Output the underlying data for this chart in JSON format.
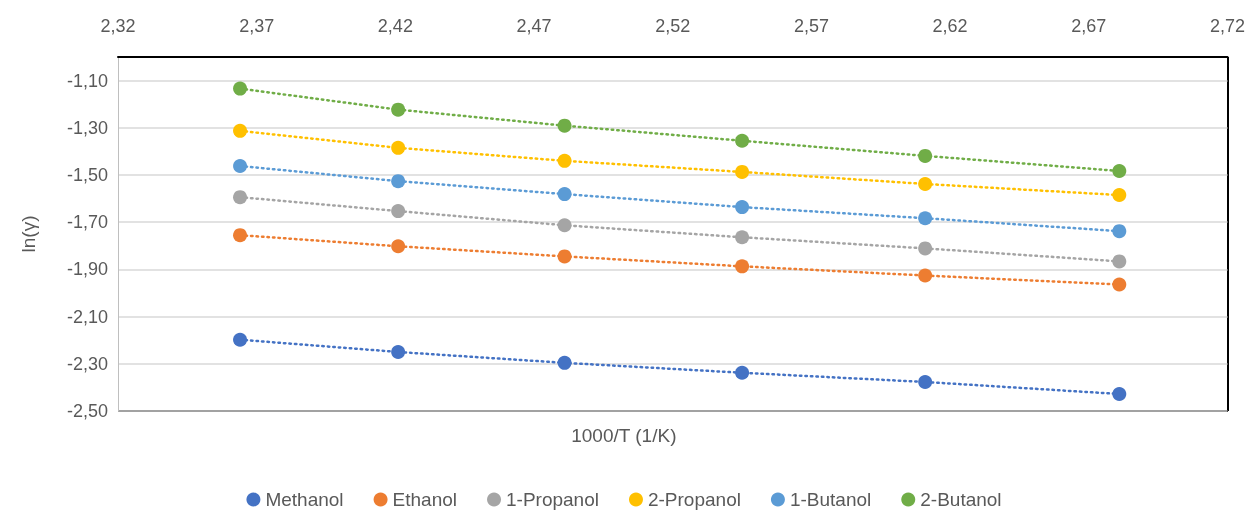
{
  "chart_data": {
    "type": "line",
    "xlabel": "1000/T (1/K)",
    "ylabel": "ln(γ)",
    "x": [
      2.364,
      2.421,
      2.481,
      2.545,
      2.611,
      2.681
    ],
    "series": [
      {
        "name": "Methanol",
        "color": "#4472c4",
        "values": [
          -2.198,
          -2.25,
          -2.296,
          -2.338,
          -2.377,
          -2.428
        ]
      },
      {
        "name": "Ethanol",
        "color": "#ed7d31",
        "values": [
          -1.755,
          -1.802,
          -1.845,
          -1.887,
          -1.926,
          -1.964
        ]
      },
      {
        "name": "1-Propanol",
        "color": "#a5a5a5",
        "values": [
          -1.594,
          -1.653,
          -1.713,
          -1.764,
          -1.811,
          -1.866
        ]
      },
      {
        "name": "2-Propanol",
        "color": "#ffc000",
        "values": [
          -1.313,
          -1.385,
          -1.44,
          -1.487,
          -1.538,
          -1.585
        ]
      },
      {
        "name": "1-Butanol",
        "color": "#5b9bd5",
        "values": [
          -1.462,
          -1.526,
          -1.581,
          -1.636,
          -1.683,
          -1.738
        ]
      },
      {
        "name": "2-Butanol",
        "color": "#70ad47",
        "values": [
          -1.134,
          -1.223,
          -1.291,
          -1.355,
          -1.419,
          -1.483
        ]
      }
    ],
    "xlim": [
      2.32,
      2.72
    ],
    "xticks": [
      {
        "value": 2.32,
        "label": "2,32"
      },
      {
        "value": 2.37,
        "label": "2,37"
      },
      {
        "value": 2.42,
        "label": "2,42"
      },
      {
        "value": 2.47,
        "label": "2,47"
      },
      {
        "value": 2.52,
        "label": "2,52"
      },
      {
        "value": 2.57,
        "label": "2,57"
      },
      {
        "value": 2.62,
        "label": "2,62"
      },
      {
        "value": 2.67,
        "label": "2,67"
      },
      {
        "value": 2.72,
        "label": "2,72"
      }
    ],
    "ylim": [
      -2.5,
      -1.0
    ],
    "yticks": [
      {
        "value": -2.5,
        "label": "-2,50"
      },
      {
        "value": -2.3,
        "label": "-2,30"
      },
      {
        "value": -2.1,
        "label": "-2,10"
      },
      {
        "value": -1.9,
        "label": "-1,90"
      },
      {
        "value": -1.7,
        "label": "-1,70"
      },
      {
        "value": -1.5,
        "label": "-1,50"
      },
      {
        "value": -1.3,
        "label": "-1,30"
      },
      {
        "value": -1.1,
        "label": "-1,10"
      }
    ],
    "grid": "y",
    "legend": "bottom",
    "marker": "circle",
    "line_style": "dotted"
  }
}
